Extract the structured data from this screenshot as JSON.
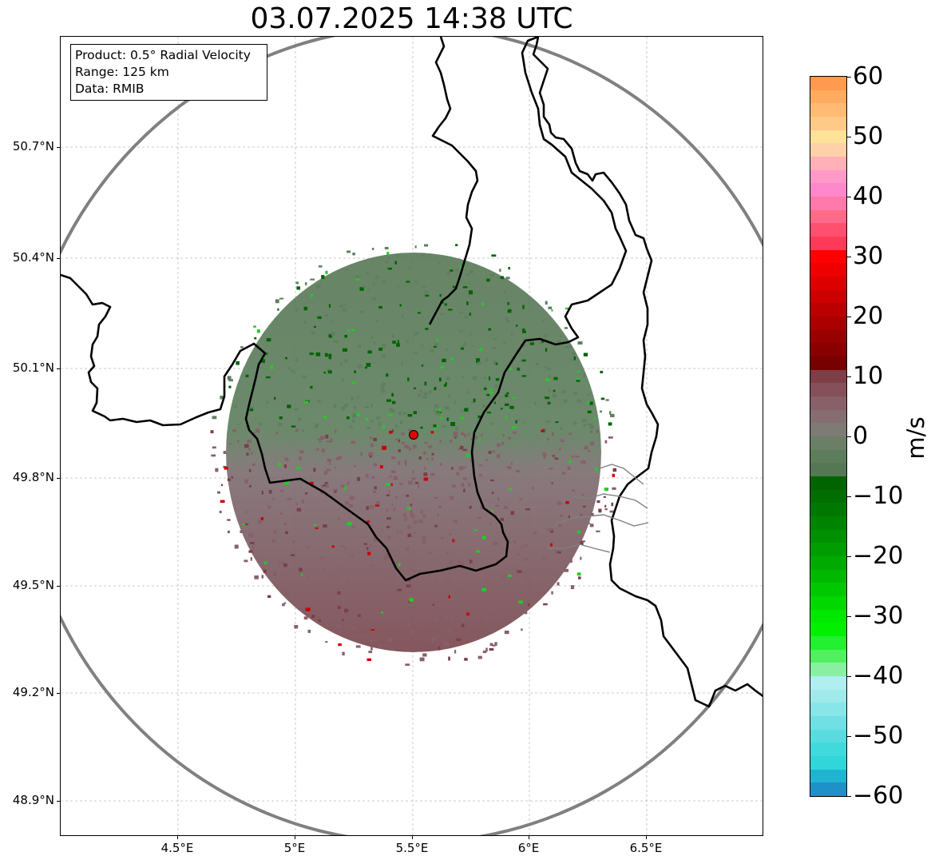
{
  "title": "03.07.2025 14:38 UTC",
  "info_box": {
    "product": "Product: 0.5° Radial Velocity",
    "range": "Range: 125 km",
    "data": "Data: RMIB"
  },
  "map": {
    "y_ticks": [
      "50.7°N",
      "50.4°N",
      "50.1°N",
      "49.8°N",
      "49.5°N",
      "49.2°N",
      "48.9°N"
    ],
    "x_ticks": [
      "4.5°E",
      "5°E",
      "5.5°E",
      "6°E",
      "6.5°E"
    ],
    "radar_site": {
      "lon": 5.5,
      "lat": 49.91
    },
    "colors": {
      "range_ring": "#808080",
      "border": "#000000",
      "grid": "#bbbbbb",
      "radar_marker": "#e00000",
      "receding_fill": "#8a5560",
      "approaching_fill": "#5f7f5f",
      "strong_approaching": "#006400"
    }
  },
  "colorbar": {
    "label": "m/s",
    "min": -60,
    "max": 60,
    "ticks": [
      "60",
      "50",
      "40",
      "30",
      "20",
      "10",
      "0",
      "−10",
      "−20",
      "−30",
      "−40",
      "−50",
      "−60"
    ],
    "segments_top_to_bottom": [
      "#ff9a50",
      "#ffab60",
      "#ffbb74",
      "#ffc987",
      "#ffe29a",
      "#ffd1a8",
      "#ffb0b8",
      "#ff9ac8",
      "#ff88cc",
      "#ff7aaa",
      "#ff6a88",
      "#ff5070",
      "#ff3a58",
      "#ff0000",
      "#ee0000",
      "#dd0000",
      "#cc0000",
      "#bb0000",
      "#aa0000",
      "#990000",
      "#880000",
      "#770000",
      "#7e3e45",
      "#85505a",
      "#876068",
      "#856d72",
      "#7e7a74",
      "#6b7f66",
      "#5d7c5a",
      "#557754",
      "#006400",
      "#006d00",
      "#007800",
      "#008400",
      "#009000",
      "#009d00",
      "#00aa00",
      "#00b800",
      "#00c800",
      "#00d800",
      "#00e800",
      "#00f000",
      "#22f030",
      "#50f060",
      "#88f0a0",
      "#b0eef0",
      "#a0eaec",
      "#88e6e8",
      "#70e0e4",
      "#58dcdf",
      "#40dadc",
      "#30d6da",
      "#20b4d0",
      "#2090c8"
    ]
  }
}
